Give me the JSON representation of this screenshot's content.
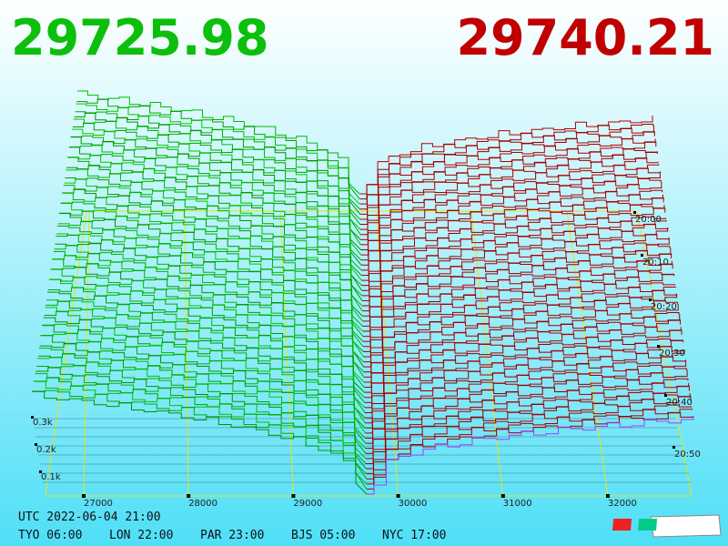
{
  "header": {
    "bid": "29725.98",
    "ask": "29740.21"
  },
  "price_axis": [
    "27000",
    "28000",
    "29000",
    "30000",
    "31000",
    "32000"
  ],
  "volume_axis": [
    "0.3k",
    "0.2k",
    "0.1k"
  ],
  "time_axis": [
    "20:00",
    "20:10",
    "20:20",
    "20:30",
    "20:40",
    "20:50"
  ],
  "clock": {
    "utc": "UTC 2022-06-04 21:00",
    "cities": [
      "TYO 06:00",
      "LON 22:00",
      "PAR 23:00",
      "BJS 05:00",
      "NYC 17:00"
    ]
  }
}
